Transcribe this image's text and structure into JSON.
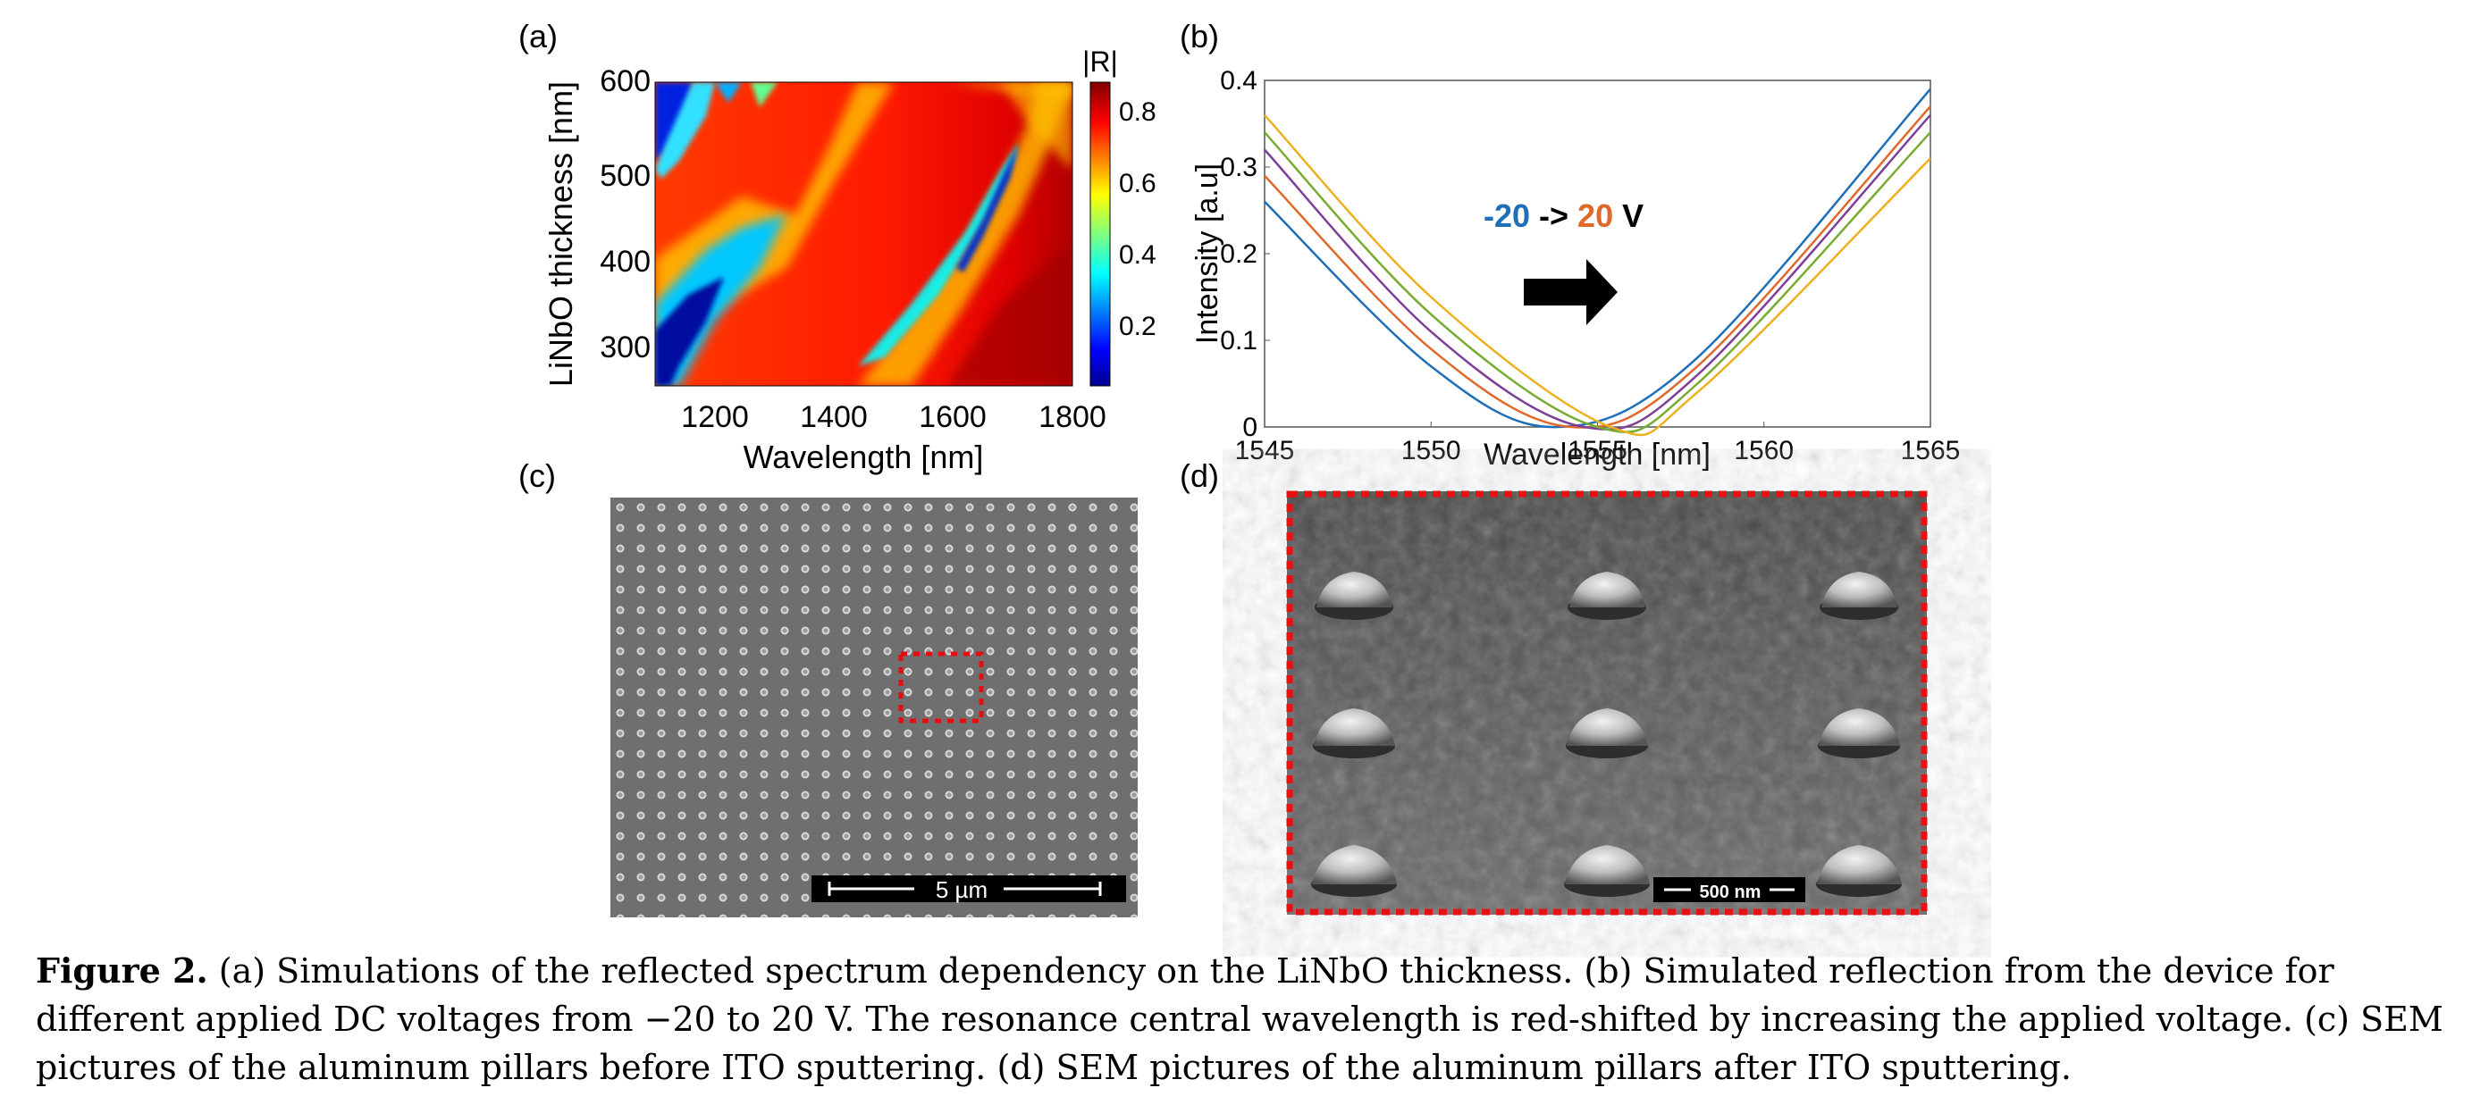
{
  "panels": {
    "a": {
      "label": "(a)"
    },
    "b": {
      "label": "(b)"
    },
    "c": {
      "label": "(c)",
      "scale_bar": "5 µm"
    },
    "d": {
      "label": "(d)",
      "scale_bar": "500 nm"
    }
  },
  "heatmap": {
    "xlabel": "Wavelength [nm]",
    "ylabel": "LiNbO thickness [nm]",
    "xticks": [
      "1200",
      "1400",
      "1600",
      "1800"
    ],
    "yticks": [
      "300",
      "400",
      "500",
      "600"
    ],
    "colorbar_title": "|R|",
    "colorbar_ticks": [
      "0.2",
      "0.4",
      "0.6",
      "0.8"
    ]
  },
  "chart_data": {
    "type": "line",
    "xlabel": "Wavelength [nm]",
    "ylabel": "Intensity [a.u]",
    "xlim": [
      1545,
      1565
    ],
    "ylim": [
      0,
      0.4
    ],
    "xticks": [
      "1545",
      "1550",
      "1555",
      "1560",
      "1565"
    ],
    "yticks": [
      "0",
      "0.1",
      "0.2",
      "0.3",
      "0.4"
    ],
    "annotation": {
      "from": "-20",
      "arrow": "->",
      "to": "20",
      "unit": "V"
    },
    "grid": false,
    "series": [
      {
        "color": "#1f6fb8",
        "x": [
          1545,
          1550,
          1553.8,
          1558,
          1565
        ],
        "y": [
          0.26,
          0.07,
          0.0,
          0.08,
          0.39
        ]
      },
      {
        "color": "#e0692a",
        "x": [
          1545,
          1550,
          1554.2,
          1558,
          1565
        ],
        "y": [
          0.29,
          0.09,
          0.0,
          0.07,
          0.37
        ]
      },
      {
        "color": "#7d3f98",
        "x": [
          1545,
          1550,
          1554.6,
          1558,
          1565
        ],
        "y": [
          0.32,
          0.11,
          0.0,
          0.06,
          0.36
        ]
      },
      {
        "color": "#77ac30",
        "x": [
          1545,
          1550,
          1555.0,
          1558,
          1565
        ],
        "y": [
          0.34,
          0.13,
          0.0,
          0.05,
          0.34
        ]
      },
      {
        "color": "#edb120",
        "x": [
          1545,
          1550,
          1555.4,
          1558,
          1565
        ],
        "y": [
          0.36,
          0.15,
          0.0,
          0.04,
          0.31
        ]
      }
    ]
  },
  "caption": {
    "label": "Figure 2.",
    "text": " (a) Simulations of the reflected spectrum dependency on the LiNbO thickness. (b) Simulated reflection from the device for different applied DC voltages from −20 to 20 V. The resonance central wavelength is red-shifted by increasing the applied voltage. (c) SEM pictures of the aluminum pillars before ITO sputtering. (d) SEM pictures of the aluminum pillars after ITO sputtering."
  }
}
